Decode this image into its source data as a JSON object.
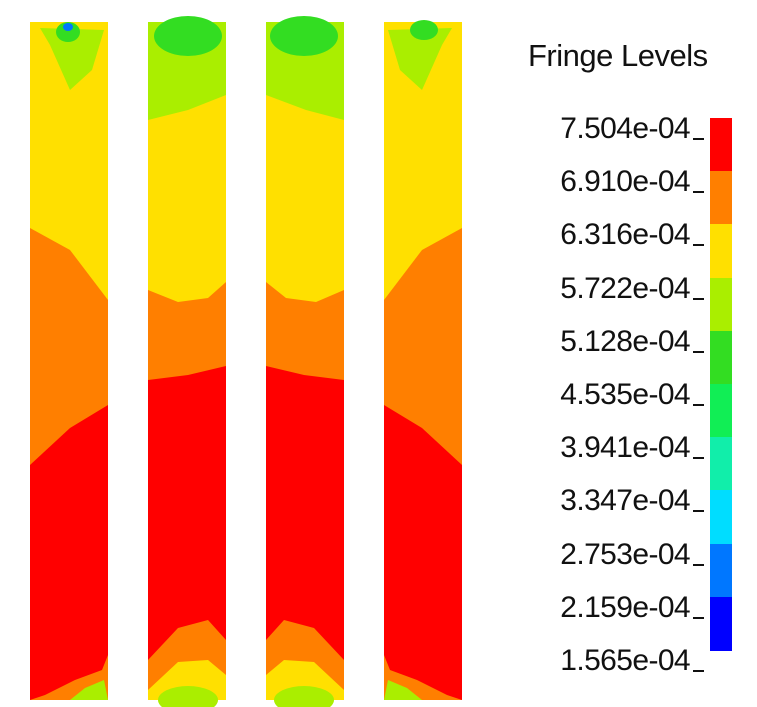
{
  "legend": {
    "title": "Fringe Levels",
    "levels": [
      "7.504e-04",
      "6.910e-04",
      "6.316e-04",
      "5.722e-04",
      "5.128e-04",
      "4.535e-04",
      "3.941e-04",
      "3.347e-04",
      "2.753e-04",
      "2.159e-04",
      "1.565e-04"
    ],
    "colors": [
      "#ff0000",
      "#ff7f00",
      "#ffe000",
      "#aaee00",
      "#33dd22",
      "#11ee55",
      "#11eeaa",
      "#00ddff",
      "#0077ff",
      "#0000ff"
    ]
  },
  "chart_data": {
    "type": "heatmap",
    "title": "Fringe Levels",
    "panel_count": 4,
    "levels": [
      0.0007504,
      0.000691,
      0.0006316,
      0.0005722,
      0.0005128,
      0.0004535,
      0.0003941,
      0.0003347,
      0.0002753,
      0.0002159,
      0.0001565
    ]
  }
}
